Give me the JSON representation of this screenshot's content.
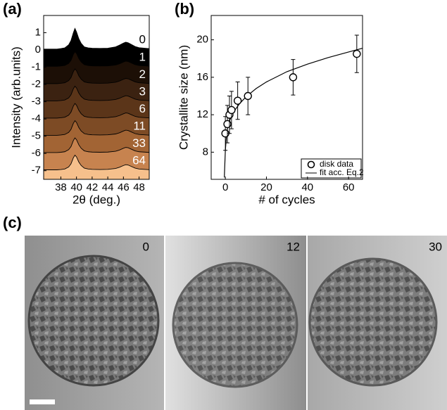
{
  "chart_data": [
    {
      "type": "area",
      "ylabel": "Intensity (arb.units)",
      "xlabel": "2θ (deg.)",
      "xlim": [
        35.8,
        49.3
      ],
      "xticks": [
        38,
        40,
        42,
        44,
        46,
        48
      ],
      "ylim": [
        -7.5,
        2
      ],
      "yticks": [
        1,
        0,
        -1,
        -2,
        -3,
        -4,
        -5,
        -6,
        -7
      ],
      "x": [
        35.8,
        37.5,
        38,
        38.5,
        39,
        39.3,
        39.6,
        39.8,
        40,
        40.3,
        40.6,
        41,
        41.5,
        42,
        43,
        44,
        45,
        45.5,
        46,
        46.3,
        46.6,
        47,
        47.5,
        48,
        49,
        49.3
      ],
      "series": [
        {
          "name": "0",
          "color": "#000000",
          "values": [
            0.05,
            0.05,
            0.08,
            0.12,
            0.3,
            0.55,
            1.0,
            1.25,
            1.05,
            0.65,
            0.38,
            0.18,
            0.12,
            0.1,
            0.09,
            0.1,
            0.18,
            0.28,
            0.4,
            0.45,
            0.42,
            0.32,
            0.2,
            0.13,
            0.09,
            0.08
          ]
        },
        {
          "name": "1",
          "color": "#1c0f06",
          "values": [
            -0.95,
            -0.95,
            -0.93,
            -0.9,
            -0.78,
            -0.6,
            -0.25,
            -0.1,
            -0.2,
            -0.5,
            -0.7,
            -0.85,
            -0.9,
            -0.92,
            -0.93,
            -0.92,
            -0.87,
            -0.8,
            -0.7,
            -0.65,
            -0.67,
            -0.75,
            -0.85,
            -0.9,
            -0.93,
            -0.94
          ]
        },
        {
          "name": "2",
          "color": "#3b2211",
          "values": [
            -1.95,
            -1.95,
            -1.93,
            -1.9,
            -1.78,
            -1.6,
            -1.25,
            -1.1,
            -1.2,
            -1.5,
            -1.7,
            -1.85,
            -1.9,
            -1.92,
            -1.93,
            -1.92,
            -1.87,
            -1.8,
            -1.7,
            -1.65,
            -1.67,
            -1.75,
            -1.85,
            -1.9,
            -1.93,
            -1.94
          ]
        },
        {
          "name": "3",
          "color": "#5b3519",
          "values": [
            -2.95,
            -2.95,
            -2.93,
            -2.9,
            -2.78,
            -2.6,
            -2.25,
            -2.1,
            -2.2,
            -2.5,
            -2.7,
            -2.85,
            -2.9,
            -2.92,
            -2.93,
            -2.92,
            -2.87,
            -2.8,
            -2.7,
            -2.65,
            -2.67,
            -2.75,
            -2.85,
            -2.9,
            -2.93,
            -2.94
          ]
        },
        {
          "name": "6",
          "color": "#7d4b25",
          "values": [
            -3.95,
            -3.95,
            -3.93,
            -3.9,
            -3.78,
            -3.6,
            -3.25,
            -3.1,
            -3.2,
            -3.5,
            -3.7,
            -3.85,
            -3.9,
            -3.92,
            -3.93,
            -3.92,
            -3.87,
            -3.8,
            -3.7,
            -3.65,
            -3.67,
            -3.75,
            -3.85,
            -3.9,
            -3.93,
            -3.94
          ]
        },
        {
          "name": "11",
          "color": "#a26434",
          "values": [
            -4.95,
            -4.95,
            -4.93,
            -4.9,
            -4.78,
            -4.6,
            -4.25,
            -4.1,
            -4.2,
            -4.5,
            -4.7,
            -4.85,
            -4.9,
            -4.92,
            -4.93,
            -4.92,
            -4.87,
            -4.8,
            -4.7,
            -4.65,
            -4.67,
            -4.75,
            -4.85,
            -4.9,
            -4.93,
            -4.94
          ]
        },
        {
          "name": "33",
          "color": "#c7834f",
          "values": [
            -5.95,
            -5.95,
            -5.93,
            -5.9,
            -5.78,
            -5.6,
            -5.25,
            -5.1,
            -5.2,
            -5.5,
            -5.7,
            -5.85,
            -5.9,
            -5.92,
            -5.93,
            -5.92,
            -5.87,
            -5.8,
            -5.7,
            -5.65,
            -5.67,
            -5.75,
            -5.85,
            -5.9,
            -5.93,
            -5.94
          ]
        },
        {
          "name": "64",
          "color": "#f6c08c",
          "values": [
            -6.95,
            -6.95,
            -6.93,
            -6.9,
            -6.78,
            -6.6,
            -6.25,
            -6.1,
            -6.2,
            -6.5,
            -6.7,
            -6.85,
            -6.9,
            -6.92,
            -6.93,
            -6.92,
            -6.87,
            -6.8,
            -6.7,
            -6.65,
            -6.67,
            -6.75,
            -6.85,
            -6.9,
            -6.93,
            -6.94
          ]
        }
      ]
    },
    {
      "type": "scatter",
      "ylabel": "Crystallite size (nm)",
      "xlabel": "# of cycles",
      "xlim": [
        -6.9,
        66.8
      ],
      "xticks": [
        0,
        20,
        40,
        60
      ],
      "ylim": [
        5.1,
        22.6
      ],
      "yticks": [
        8,
        12,
        16,
        20
      ],
      "series": [
        {
          "name": "disk data",
          "x": [
            0,
            1,
            2,
            3,
            6,
            11,
            33,
            64
          ],
          "values": [
            10,
            11,
            12,
            12.5,
            13.5,
            14,
            16,
            18.5
          ],
          "errors": [
            1.8,
            2,
            2,
            2,
            2,
            2,
            1.9,
            2
          ]
        },
        {
          "name": "fit acc. Eq.2",
          "x": [
            -0.5,
            0,
            0.5,
            1,
            2,
            3,
            5,
            7,
            10,
            15,
            20,
            30,
            40,
            50,
            60,
            66.8
          ],
          "values": [
            5.3,
            8.2,
            9.6,
            10.5,
            11.3,
            11.9,
            12.6,
            13.2,
            13.9,
            14.8,
            15.5,
            16.6,
            17.4,
            18.1,
            18.7,
            19.1
          ]
        }
      ]
    }
  ],
  "panel_labels": [
    "(a)",
    "(b)",
    "(c)"
  ],
  "images": [
    {
      "label": "0"
    },
    {
      "label": "12"
    },
    {
      "label": "30"
    }
  ]
}
